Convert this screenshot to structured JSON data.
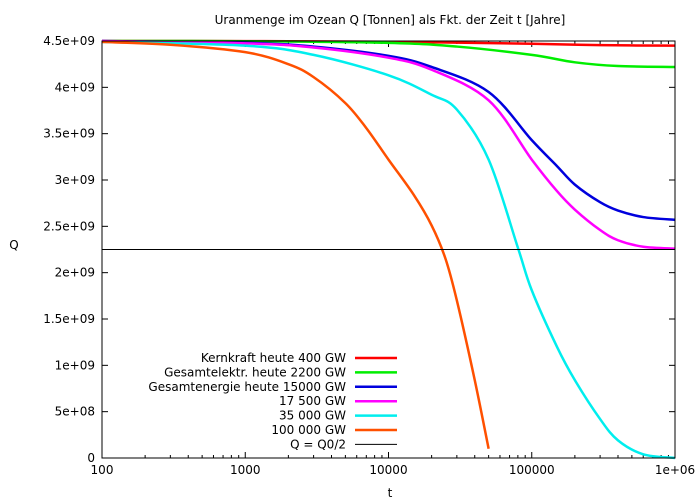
{
  "chart_data": {
    "type": "line",
    "title": "Uranmenge im Ozean Q [Tonnen] als Fkt. der Zeit t [Jahre]",
    "xlabel": "t",
    "ylabel": "Q",
    "xscale": "log",
    "xlim": [
      100,
      1000000
    ],
    "ylim": [
      0,
      4500000000
    ],
    "xticks": [
      {
        "value": 100,
        "label": "100"
      },
      {
        "value": 1000,
        "label": "1000"
      },
      {
        "value": 10000,
        "label": "10000"
      },
      {
        "value": 100000,
        "label": "100000"
      },
      {
        "value": 1000000,
        "label": "1e+06"
      }
    ],
    "yticks": [
      {
        "value": 0,
        "label": "0"
      },
      {
        "value": 500000000,
        "label": "5e+08"
      },
      {
        "value": 1000000000,
        "label": "1e+09"
      },
      {
        "value": 1500000000,
        "label": "1.5e+09"
      },
      {
        "value": 2000000000,
        "label": "2e+09"
      },
      {
        "value": 2500000000,
        "label": "2.5e+09"
      },
      {
        "value": 3000000000,
        "label": "3e+09"
      },
      {
        "value": 3500000000,
        "label": "3.5e+09"
      },
      {
        "value": 4000000000,
        "label": "4e+09"
      },
      {
        "value": 4500000000,
        "label": "4.5e+09"
      }
    ],
    "legend_position": "bottom-left",
    "grid": false,
    "series": [
      {
        "name": "Kernkraft heute 400 GW",
        "color": "#ff0000",
        "x": [
          100,
          1000,
          10000,
          100000,
          300000,
          1000000
        ],
        "y": [
          4500000000,
          4499000000,
          4492000000,
          4470000000,
          4455000000,
          4450000000
        ]
      },
      {
        "name": "Gesamtelektr. heute 2200 GW",
        "color": "#00ee00",
        "x": [
          100,
          1000,
          10000,
          30000,
          100000,
          200000,
          400000,
          1000000
        ],
        "y": [
          4500000000,
          4498000000,
          4480000000,
          4440000000,
          4350000000,
          4270000000,
          4230000000,
          4220000000
        ]
      },
      {
        "name": "Gesamtenergie heute 15000 GW",
        "color": "#0000dd",
        "x": [
          100,
          1000,
          3000,
          10000,
          20000,
          50000,
          100000,
          150000,
          200000,
          300000,
          400000,
          600000,
          1000000
        ],
        "y": [
          4500000000,
          4480000000,
          4440000000,
          4340000000,
          4220000000,
          3950000000,
          3430000000,
          3150000000,
          2950000000,
          2760000000,
          2670000000,
          2600000000,
          2570000000
        ]
      },
      {
        "name": "17 500 GW",
        "color": "#ff00ff",
        "x": [
          100,
          1000,
          3000,
          10000,
          20000,
          50000,
          100000,
          150000,
          200000,
          300000,
          400000,
          600000,
          1000000
        ],
        "y": [
          4500000000,
          4475000000,
          4430000000,
          4320000000,
          4190000000,
          3860000000,
          3220000000,
          2880000000,
          2680000000,
          2460000000,
          2350000000,
          2280000000,
          2260000000
        ]
      },
      {
        "name": "35 000 GW",
        "color": "#00eeee",
        "x": [
          100,
          1000,
          3000,
          10000,
          20000,
          30000,
          50000,
          80000,
          100000,
          150000,
          200000,
          300000,
          400000,
          600000,
          1000000
        ],
        "y": [
          4490000000,
          4450000000,
          4350000000,
          4130000000,
          3920000000,
          3760000000,
          3220000000,
          2270000000,
          1810000000,
          1200000000,
          840000000,
          420000000,
          190000000,
          40000000,
          0
        ]
      },
      {
        "name": "100 000 GW",
        "color": "#ff5000",
        "x": [
          100,
          300,
          1000,
          2000,
          3000,
          5000,
          7000,
          10000,
          15000,
          20000,
          25000,
          30000,
          40000,
          50000
        ],
        "y": [
          4490000000,
          4460000000,
          4380000000,
          4250000000,
          4110000000,
          3830000000,
          3560000000,
          3220000000,
          2840000000,
          2510000000,
          2150000000,
          1700000000,
          840000000,
          100000000
        ]
      },
      {
        "name": "Q = Q0/2",
        "color": "#000000",
        "x": [
          100,
          1000000
        ],
        "y": [
          2250000000,
          2250000000
        ]
      }
    ]
  }
}
